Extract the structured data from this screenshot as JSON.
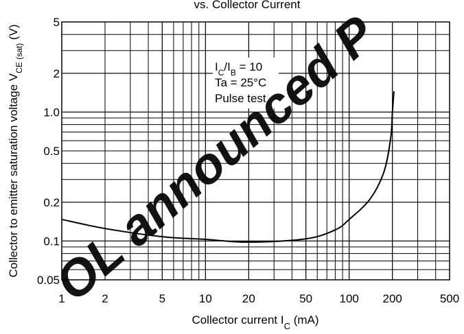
{
  "chart_data": {
    "type": "line",
    "title": "vs. Collector Current",
    "x_label": [
      "Collector current  I",
      "C",
      "  (mA)"
    ],
    "y_label": [
      "Collector to emitter saturation voltage  V",
      "CE (sat)",
      "  (V)"
    ],
    "annotations": [
      [
        "I",
        "C",
        "/I",
        "B",
        " = 10"
      ],
      [
        "Ta = 25°C"
      ],
      [
        "Pulse test"
      ]
    ],
    "watermark": "OL announced P",
    "log_x": true,
    "log_y": true,
    "grid": true,
    "xlim": [
      1,
      500
    ],
    "ylim": [
      0.05,
      5
    ],
    "xticks": [
      1,
      2,
      5,
      10,
      20,
      50,
      100,
      200,
      500
    ],
    "yticks": [
      5,
      2,
      {
        "value": 1,
        "label": "1.0"
      },
      0.5,
      0.2,
      0.1,
      0.05
    ],
    "series": [
      {
        "color": "#000000",
        "x": [
          1,
          2,
          5,
          10,
          20,
          50,
          80,
          100,
          140,
          175,
          195,
          200,
          205
        ],
        "values": [
          0.147,
          0.125,
          0.108,
          0.103,
          0.098,
          0.104,
          0.122,
          0.147,
          0.212,
          0.346,
          0.64,
          1.0,
          1.45
        ]
      }
    ]
  }
}
